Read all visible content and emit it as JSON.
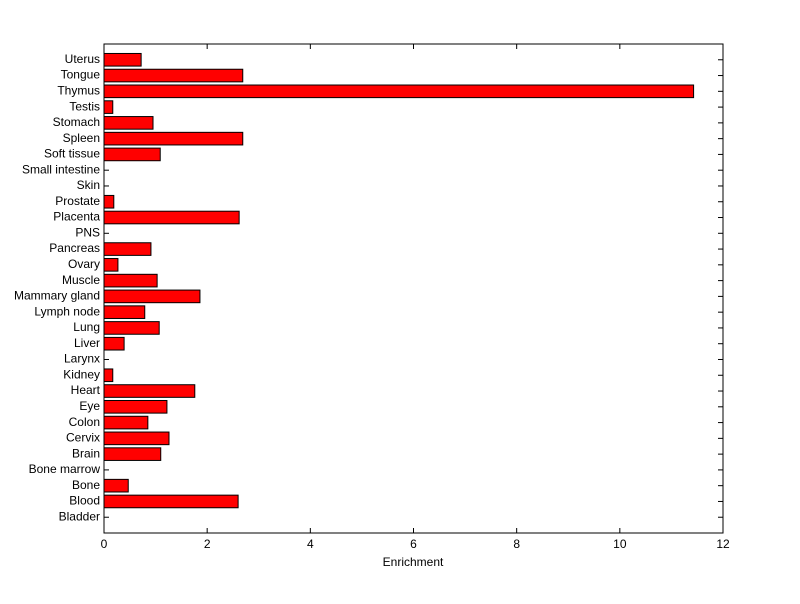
{
  "chart_data": {
    "type": "hbar",
    "x_label": "Enrichment",
    "categories": [
      "Uterus",
      "Tongue",
      "Thymus",
      "Testis",
      "Stomach",
      "Spleen",
      "Soft tissue",
      "Small intestine",
      "Skin",
      "Prostate",
      "Placenta",
      "PNS",
      "Pancreas",
      "Ovary",
      "Muscle",
      "Mammary gland",
      "Lymph node",
      "Lung",
      "Liver",
      "Larynx",
      "Kidney",
      "Heart",
      "Eye",
      "Colon",
      "Cervix",
      "Brain",
      "Bone marrow",
      "Bone",
      "Blood",
      "Bladder"
    ],
    "values": [
      0.72,
      2.69,
      11.43,
      0.17,
      0.95,
      2.69,
      1.09,
      0,
      0,
      0.19,
      2.62,
      0,
      0.91,
      0.27,
      1.03,
      1.86,
      0.79,
      1.07,
      0.39,
      0,
      0.17,
      1.76,
      1.22,
      0.85,
      1.26,
      1.1,
      0,
      0.47,
      2.6,
      0
    ],
    "color": "#ff0000",
    "xlim": [
      0,
      12
    ],
    "xticks": [
      0,
      2,
      4,
      6,
      8,
      10,
      12
    ]
  }
}
